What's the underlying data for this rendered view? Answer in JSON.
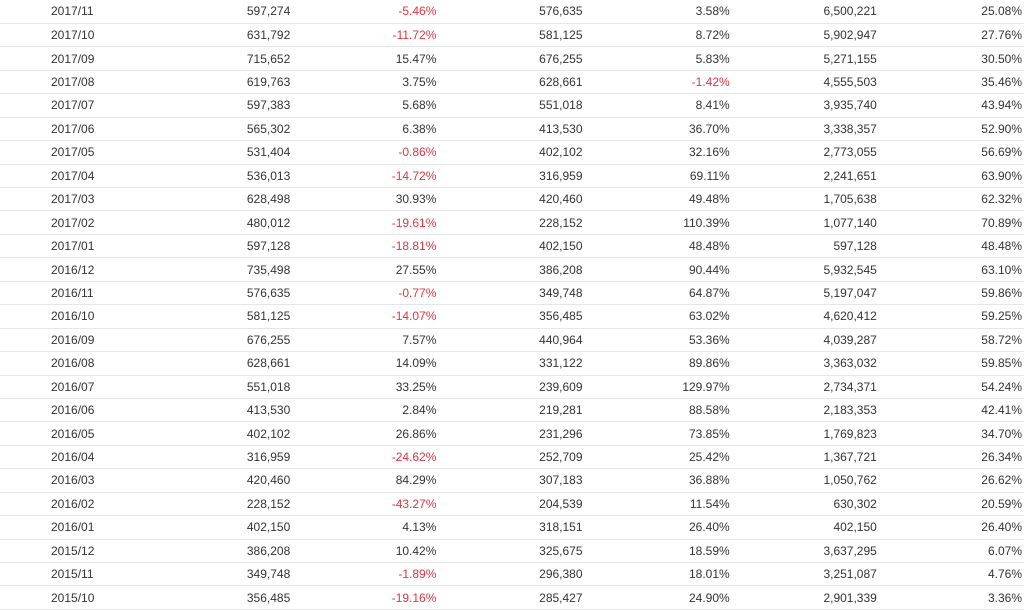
{
  "colors": {
    "negative": "#e8343f",
    "text": "#333333",
    "row_border": "#e6e6e6"
  },
  "rows": [
    [
      "2017/11",
      "597,274",
      "-5.46%",
      "576,635",
      "3.58%",
      "6,500,221",
      "25.08%"
    ],
    [
      "2017/10",
      "631,792",
      "-11.72%",
      "581,125",
      "8.72%",
      "5,902,947",
      "27.76%"
    ],
    [
      "2017/09",
      "715,652",
      "15.47%",
      "676,255",
      "5.83%",
      "5,271,155",
      "30.50%"
    ],
    [
      "2017/08",
      "619,763",
      "3.75%",
      "628,661",
      "-1.42%",
      "4,555,503",
      "35.46%"
    ],
    [
      "2017/07",
      "597,383",
      "5.68%",
      "551,018",
      "8.41%",
      "3,935,740",
      "43.94%"
    ],
    [
      "2017/06",
      "565,302",
      "6.38%",
      "413,530",
      "36.70%",
      "3,338,357",
      "52.90%"
    ],
    [
      "2017/05",
      "531,404",
      "-0.86%",
      "402,102",
      "32.16%",
      "2,773,055",
      "56.69%"
    ],
    [
      "2017/04",
      "536,013",
      "-14.72%",
      "316,959",
      "69.11%",
      "2,241,651",
      "63.90%"
    ],
    [
      "2017/03",
      "628,498",
      "30.93%",
      "420,460",
      "49.48%",
      "1,705,638",
      "62.32%"
    ],
    [
      "2017/02",
      "480,012",
      "-19.61%",
      "228,152",
      "110.39%",
      "1,077,140",
      "70.89%"
    ],
    [
      "2017/01",
      "597,128",
      "-18.81%",
      "402,150",
      "48.48%",
      "597,128",
      "48.48%"
    ],
    [
      "2016/12",
      "735,498",
      "27.55%",
      "386,208",
      "90.44%",
      "5,932,545",
      "63.10%"
    ],
    [
      "2016/11",
      "576,635",
      "-0.77%",
      "349,748",
      "64.87%",
      "5,197,047",
      "59.86%"
    ],
    [
      "2016/10",
      "581,125",
      "-14.07%",
      "356,485",
      "63.02%",
      "4,620,412",
      "59.25%"
    ],
    [
      "2016/09",
      "676,255",
      "7.57%",
      "440,964",
      "53.36%",
      "4,039,287",
      "58.72%"
    ],
    [
      "2016/08",
      "628,661",
      "14.09%",
      "331,122",
      "89.86%",
      "3,363,032",
      "59.85%"
    ],
    [
      "2016/07",
      "551,018",
      "33.25%",
      "239,609",
      "129.97%",
      "2,734,371",
      "54.24%"
    ],
    [
      "2016/06",
      "413,530",
      "2.84%",
      "219,281",
      "88.58%",
      "2,183,353",
      "42.41%"
    ],
    [
      "2016/05",
      "402,102",
      "26.86%",
      "231,296",
      "73.85%",
      "1,769,823",
      "34.70%"
    ],
    [
      "2016/04",
      "316,959",
      "-24.62%",
      "252,709",
      "25.42%",
      "1,367,721",
      "26.34%"
    ],
    [
      "2016/03",
      "420,460",
      "84.29%",
      "307,183",
      "36.88%",
      "1,050,762",
      "26.62%"
    ],
    [
      "2016/02",
      "228,152",
      "-43.27%",
      "204,539",
      "11.54%",
      "630,302",
      "20.59%"
    ],
    [
      "2016/01",
      "402,150",
      "4.13%",
      "318,151",
      "26.40%",
      "402,150",
      "26.40%"
    ],
    [
      "2015/12",
      "386,208",
      "10.42%",
      "325,675",
      "18.59%",
      "3,637,295",
      "6.07%"
    ],
    [
      "2015/11",
      "349,748",
      "-1.89%",
      "296,380",
      "18.01%",
      "3,251,087",
      "4.76%"
    ],
    [
      "2015/10",
      "356,485",
      "-19.16%",
      "285,427",
      "24.90%",
      "2,901,339",
      "3.36%"
    ]
  ]
}
